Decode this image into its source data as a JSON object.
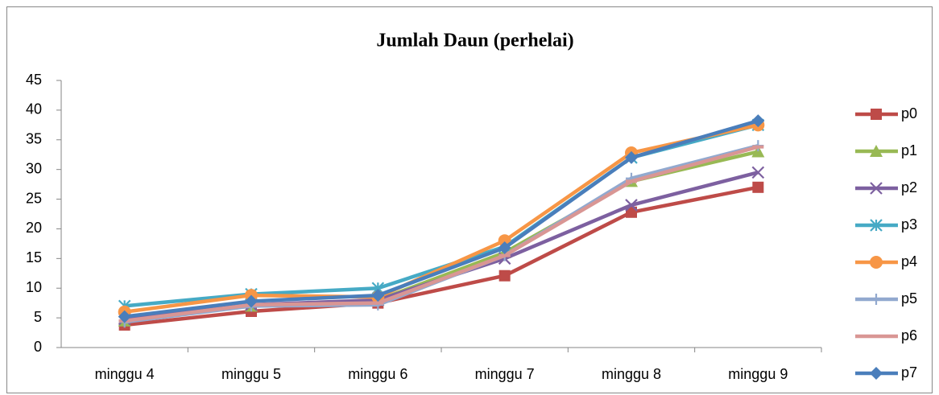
{
  "chart_data": {
    "type": "line",
    "title": "Jumlah Daun (perhelai)",
    "categories": [
      "minggu 4",
      "minggu 5",
      "minggu 6",
      "minggu 7",
      "minggu 8",
      "minggu 9"
    ],
    "ylim": [
      0,
      45
    ],
    "yticks": [
      0,
      5,
      10,
      15,
      20,
      25,
      30,
      35,
      40,
      45
    ],
    "grid": false,
    "legend": "right",
    "series": [
      {
        "name": "p0",
        "color": "#be4b48",
        "marker": "square",
        "values": [
          3.8,
          6.1,
          7.5,
          12.1,
          22.8,
          27
        ]
      },
      {
        "name": "p1",
        "color": "#98b954",
        "marker": "triangle",
        "values": [
          4.5,
          7,
          8,
          16,
          28,
          33
        ]
      },
      {
        "name": "p2",
        "color": "#7d60a0",
        "marker": "x",
        "values": [
          4.8,
          7.2,
          8,
          15,
          24,
          29.5
        ]
      },
      {
        "name": "p3",
        "color": "#46aac5",
        "marker": "star",
        "values": [
          7,
          9,
          10,
          17,
          32,
          37.5
        ]
      },
      {
        "name": "p4",
        "color": "#f79646",
        "marker": "circle",
        "values": [
          6,
          8.8,
          8.5,
          18,
          32.8,
          37.5
        ]
      },
      {
        "name": "p5",
        "color": "#92a9cf",
        "marker": "plus",
        "values": [
          4.3,
          7,
          7.2,
          15.5,
          28.5,
          34
        ]
      },
      {
        "name": "p6",
        "color": "#d99694",
        "marker": "dash",
        "values": [
          4.5,
          7.2,
          7.5,
          15.5,
          28,
          33.8
        ]
      },
      {
        "name": "p7",
        "color": "#4a7ebb",
        "marker": "diamond",
        "values": [
          5.2,
          7.8,
          8.8,
          16.8,
          32,
          38.2
        ]
      }
    ]
  }
}
